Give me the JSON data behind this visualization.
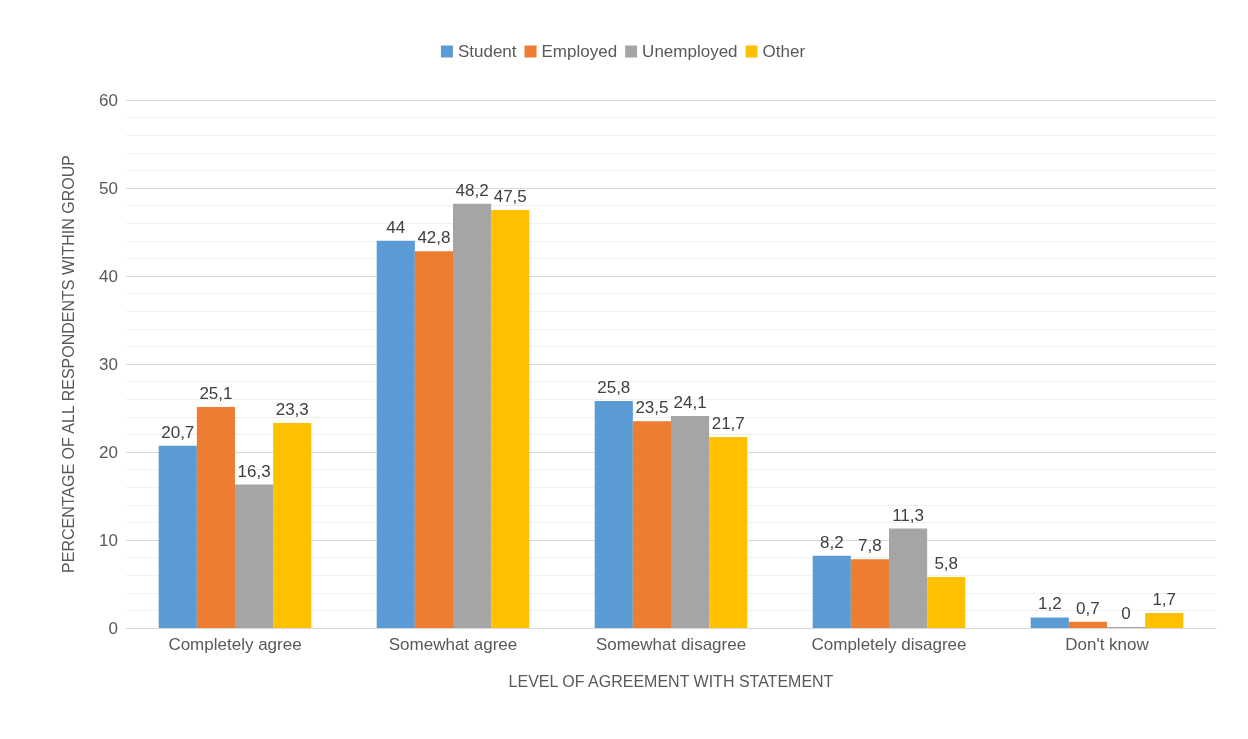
{
  "chart_data": {
    "type": "bar",
    "xlabel": "LEVEL OF AGREEMENT WITH STATEMENT",
    "ylabel": "PERCENTAGE OF ALL RESPONDENTS WITHIN GROUP",
    "categories": [
      "Completely agree",
      "Somewhat agree",
      "Somewhat disagree",
      "Completely disagree",
      "Don't know"
    ],
    "series": [
      {
        "name": "Student",
        "color": "#5b9bd5",
        "values": [
          20.7,
          44,
          25.8,
          8.2,
          1.2
        ],
        "value_labels": [
          "20,7",
          "44",
          "25,8",
          "8,2",
          "1,2"
        ]
      },
      {
        "name": "Employed",
        "color": "#ed7d31",
        "values": [
          25.1,
          42.8,
          23.5,
          7.8,
          0.7
        ],
        "value_labels": [
          "25,1",
          "42,8",
          "23,5",
          "7,8",
          "0,7"
        ]
      },
      {
        "name": "Unemployed",
        "color": "#a5a5a5",
        "values": [
          16.3,
          48.2,
          24.1,
          11.3,
          0
        ],
        "value_labels": [
          "16,3",
          "48,2",
          "24,1",
          "11,3",
          "0"
        ]
      },
      {
        "name": "Other",
        "color": "#ffc000",
        "values": [
          23.3,
          47.5,
          21.7,
          5.8,
          1.7
        ],
        "value_labels": [
          "23,3",
          "47,5",
          "21,7",
          "5,8",
          "1,7"
        ]
      }
    ],
    "ylim": [
      0,
      60
    ],
    "yticks": [
      0,
      10,
      20,
      30,
      40,
      50,
      60
    ],
    "grid": "y",
    "legend": "top"
  }
}
